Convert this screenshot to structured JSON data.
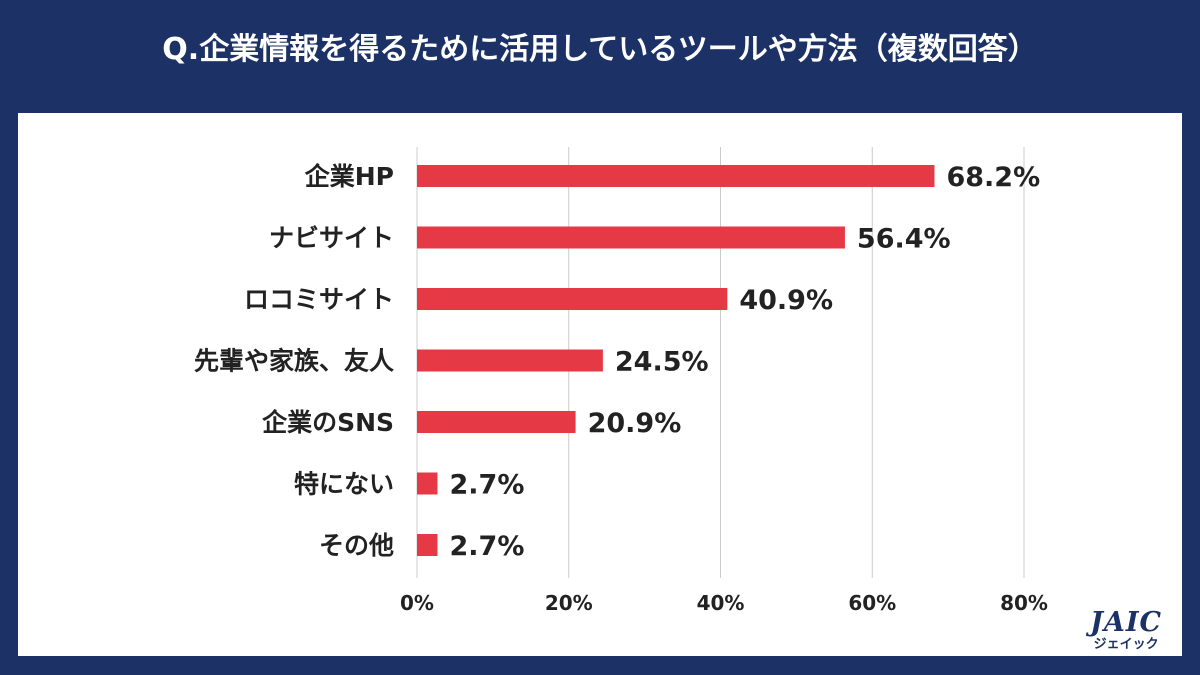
{
  "title": "Q.企業情報を得るために活用しているツールや方法（複数回答）",
  "colors": {
    "background": "#1c3266",
    "bar": "#e63946",
    "grid": "#cccccc",
    "panel": "#ffffff"
  },
  "chart_data": {
    "type": "bar",
    "orientation": "horizontal",
    "title": "Q.企業情報を得るために活用しているツールや方法（複数回答）",
    "categories": [
      "企業HP",
      "ナビサイト",
      "ロコミサイト",
      "先輩や家族、友人",
      "企業のSNS",
      "特にない",
      "その他"
    ],
    "values": [
      68.2,
      56.4,
      40.9,
      24.5,
      20.9,
      2.7,
      2.7
    ],
    "value_labels": [
      "68.2%",
      "56.4%",
      "40.9%",
      "24.5%",
      "20.9%",
      "2.7%",
      "2.7%"
    ],
    "xlim": [
      0,
      80
    ],
    "xticks": [
      0,
      20,
      40,
      60,
      80
    ],
    "xtick_labels": [
      "0%",
      "20%",
      "40%",
      "60%",
      "80%"
    ],
    "grid": true,
    "xlabel": "",
    "ylabel": ""
  },
  "logo": {
    "main": "JAIC",
    "sub": "ジェイック"
  }
}
